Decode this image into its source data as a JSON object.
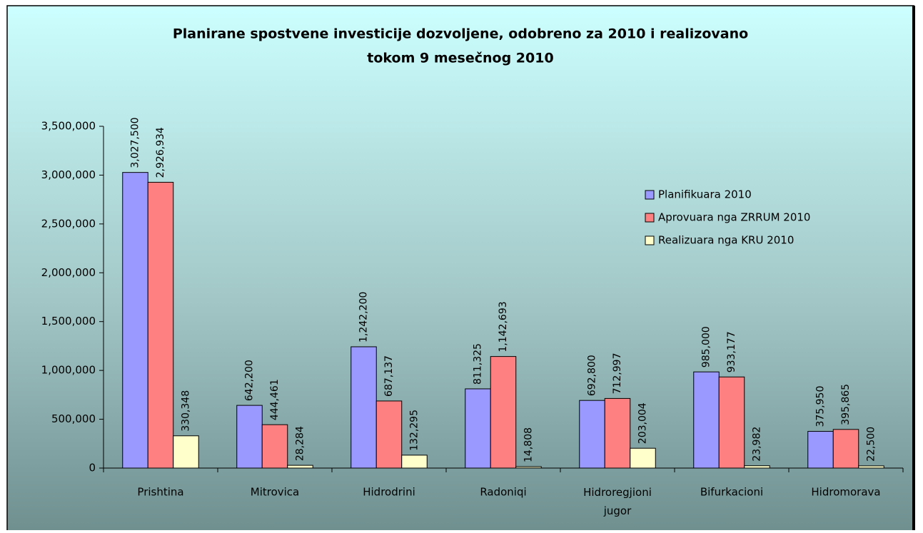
{
  "chart_data": {
    "type": "bar",
    "title": [
      "Planirane spostvene investicije dozvoljene, odobreno za 2010 i realizovano",
      "tokom 9 mesečnog 2010"
    ],
    "categories": [
      "Prishtina",
      "Mitrovica",
      "Hidrodrini",
      "Radoniqi",
      "Hidroregjioni jugor",
      "Bifurkacioni",
      "Hidromorava"
    ],
    "series": [
      {
        "name": "Planifikuara 2010",
        "color": "#9999ff",
        "values": [
          3027500,
          642200,
          1242200,
          811325,
          692800,
          985000,
          375950
        ],
        "value_labels": [
          "3,027,500",
          "642,200",
          "1,242,200",
          "811,325",
          "692,800",
          "985,000",
          "375,950"
        ]
      },
      {
        "name": "Aprovuara nga ZRRUM 2010",
        "color": "#ff8080",
        "values": [
          2926934,
          444461,
          687137,
          1142693,
          712997,
          933177,
          395865
        ],
        "value_labels": [
          "2,926,934",
          "444,461",
          "687,137",
          "1,142,693",
          "712,997",
          "933,177",
          "395,865"
        ]
      },
      {
        "name": "Realizuara nga KRU 2010",
        "color": "#ffffcc",
        "values": [
          330348,
          28284,
          132295,
          14808,
          203004,
          23982,
          22500
        ],
        "value_labels": [
          "330,348",
          "28,284",
          "132,295",
          "14,808",
          "203,004",
          "23,982",
          "22,500"
        ]
      }
    ],
    "ylim": [
      0,
      3500000
    ],
    "yticks": [
      0,
      {
        "value": 500000,
        "label": "500,000"
      },
      {
        "value": 1000000,
        "label": "1,000,000"
      },
      {
        "value": 1500000,
        "label": "1,500,000"
      },
      {
        "value": 2000000,
        "label": "2,000,000"
      },
      {
        "value": 2500000,
        "label": "2,500,000"
      },
      {
        "value": 3000000,
        "label": "3,000,000"
      },
      {
        "value": 3500000,
        "label": "3,500,000"
      }
    ],
    "grid": false,
    "legend": "right"
  }
}
